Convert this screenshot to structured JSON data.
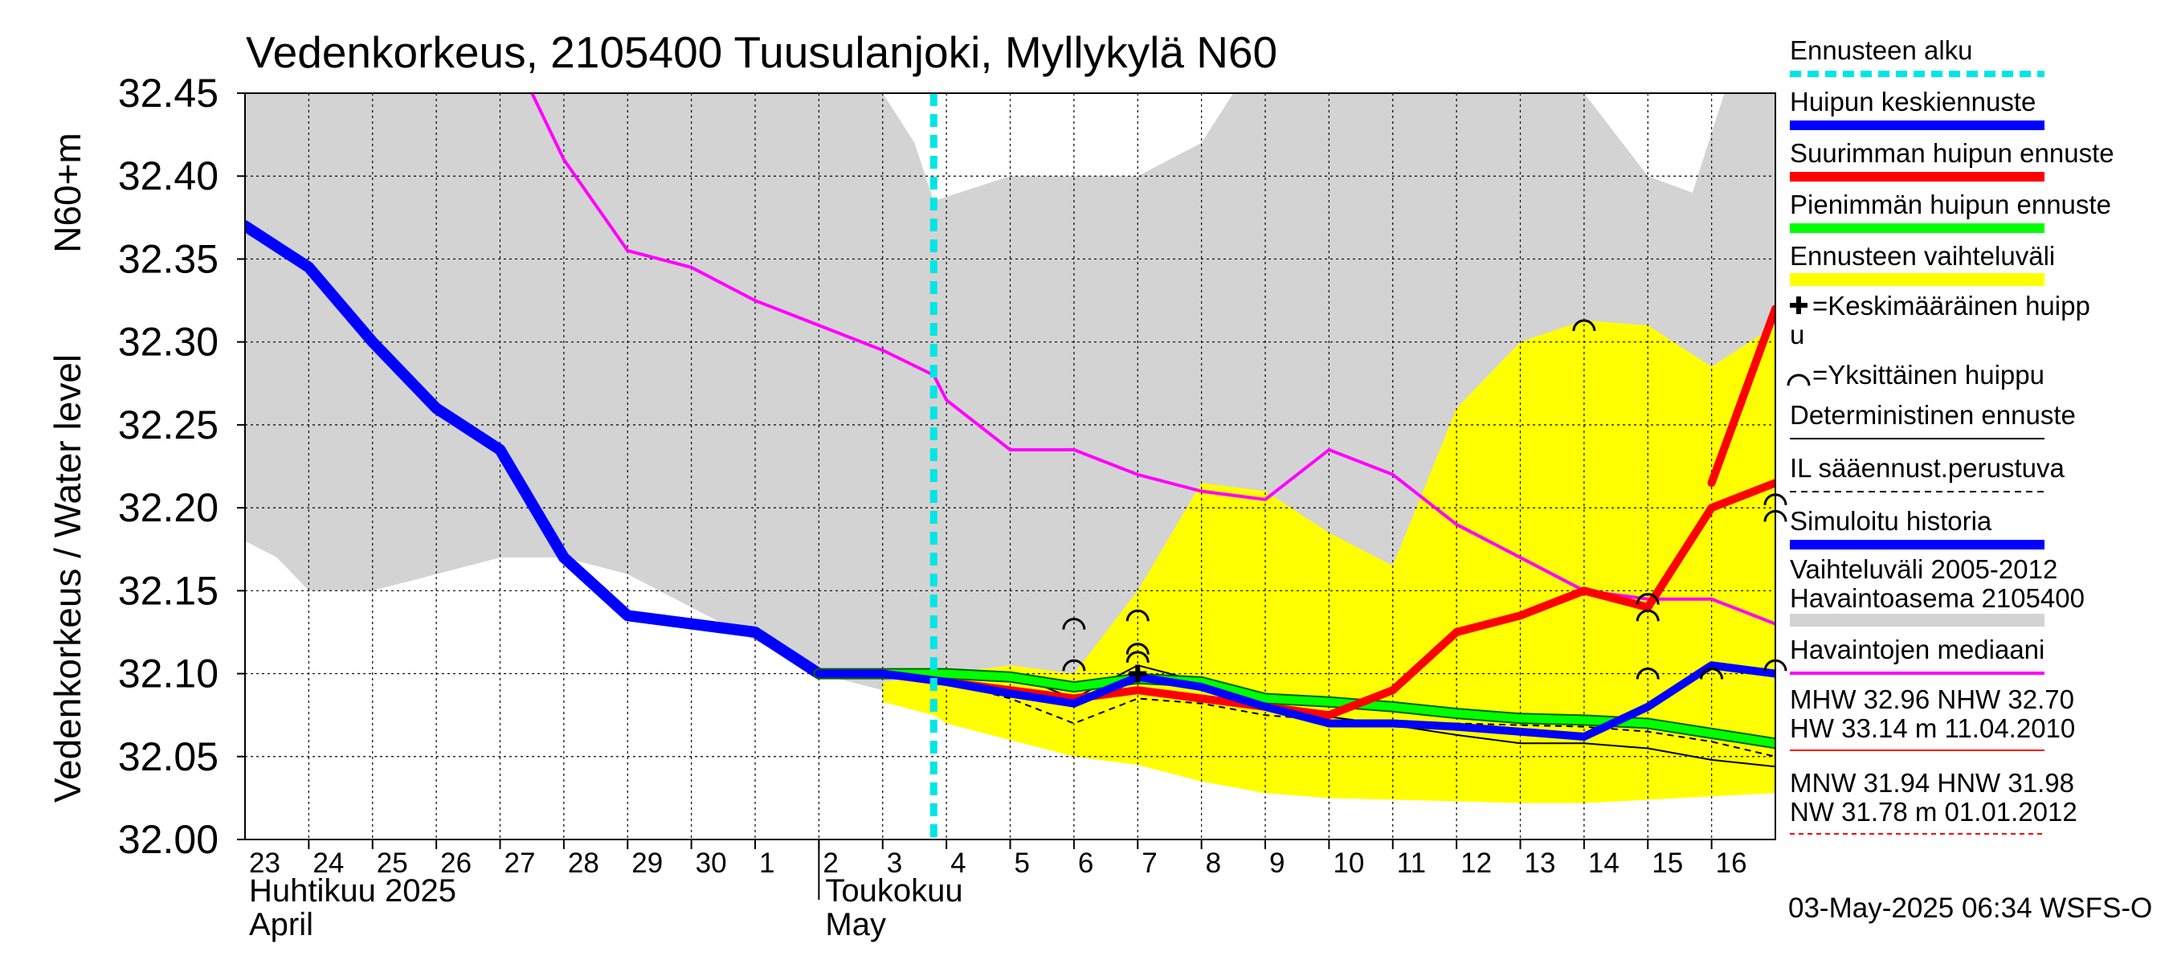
{
  "chart_data": {
    "type": "line",
    "title": "Vedenkorkeus, 2105400 Tuusulanjoki, Myllykylä N60",
    "ylabel_line1": "N60+m",
    "ylabel_line2": "Vedenkorkeus / Water level",
    "ylim": [
      32.0,
      32.45
    ],
    "yticks": [
      32.0,
      32.05,
      32.1,
      32.15,
      32.2,
      32.25,
      32.3,
      32.35,
      32.4,
      32.45
    ],
    "ytick_labels": [
      "32.00",
      "32.05",
      "32.10",
      "32.15",
      "32.20",
      "32.25",
      "32.30",
      "32.35",
      "32.40",
      "32.45"
    ],
    "xlim": [
      0,
      24
    ],
    "day_labels": [
      "23",
      "24",
      "25",
      "26",
      "27",
      "28",
      "29",
      "30",
      "1",
      "2",
      "3",
      "4",
      "5",
      "6",
      "7",
      "8",
      "9",
      "10",
      "11",
      "12",
      "13",
      "14",
      "15",
      "16"
    ],
    "month_labels": [
      {
        "fi": "Huhtikuu  2025",
        "en": "April",
        "x": 0
      },
      {
        "fi": "Toukokuu",
        "en": "May",
        "x": 9
      }
    ],
    "forecast_start_x": 10.8,
    "range_band": {
      "name": "Vaihteluväli 2005-2012  Havaintoasema 2105400",
      "color": "#d3d3d3",
      "x": [
        0,
        0.5,
        1,
        2,
        3,
        4,
        5,
        6,
        7,
        8,
        9,
        10,
        10.5,
        10.8,
        11.2,
        12,
        13,
        14,
        15,
        15.5,
        16,
        17,
        18,
        19,
        20,
        21,
        22,
        22.7,
        23.2,
        23.5,
        24
      ],
      "upper": [
        32.45,
        32.45,
        32.45,
        32.45,
        32.45,
        32.45,
        32.45,
        32.45,
        32.45,
        32.45,
        32.45,
        32.45,
        32.42,
        32.385,
        32.39,
        32.4,
        32.4,
        32.4,
        32.42,
        32.45,
        32.45,
        32.45,
        32.45,
        32.45,
        32.45,
        32.45,
        32.4,
        32.39,
        32.45,
        32.45,
        32.45
      ],
      "lower": [
        32.18,
        32.17,
        32.15,
        32.15,
        32.16,
        32.17,
        32.17,
        32.16,
        32.14,
        32.12,
        32.1,
        32.09,
        32.08,
        32.075,
        32.08,
        32.08,
        32.1,
        32.08,
        32.1,
        32.09,
        32.08,
        32.07,
        32.06,
        32.06,
        32.06,
        32.06,
        32.06,
        32.05,
        32.1,
        32.15,
        32.29
      ]
    },
    "forecast_band": {
      "name": "Ennusteen vaihteluväli",
      "color": "#ffff00",
      "x": [
        10,
        10.8,
        11,
        12,
        13,
        14,
        15,
        16,
        17,
        18,
        19,
        20,
        21,
        22,
        23,
        24
      ],
      "upper": [
        32.095,
        32.098,
        32.1,
        32.105,
        32.1,
        32.15,
        32.215,
        32.21,
        32.185,
        32.165,
        32.26,
        32.3,
        32.313,
        32.31,
        32.285,
        32.31
      ],
      "lower": [
        32.083,
        32.075,
        32.07,
        32.06,
        32.05,
        32.045,
        32.035,
        32.028,
        32.025,
        32.024,
        32.023,
        32.022,
        32.022,
        32.024,
        32.026,
        32.028
      ]
    },
    "series": [
      {
        "name": "Havaintojen mediaani",
        "color": "#ff00ff",
        "width": 4,
        "x": [
          4.5,
          5,
          6,
          7,
          8,
          9,
          10,
          10.8,
          11,
          12,
          13,
          14,
          15,
          16,
          17,
          18,
          19,
          20,
          21,
          22,
          23,
          24
        ],
        "y": [
          32.45,
          32.41,
          32.355,
          32.345,
          32.325,
          32.31,
          32.295,
          32.28,
          32.265,
          32.235,
          32.235,
          32.22,
          32.21,
          32.205,
          32.235,
          32.22,
          32.19,
          32.17,
          32.15,
          32.145,
          32.145,
          32.13
        ]
      },
      {
        "name": "Simuloitu historia",
        "color": "#0000ff",
        "width": 14,
        "x": [
          0,
          1,
          2,
          3,
          4,
          5,
          6,
          7,
          8,
          9
        ],
        "y": [
          32.37,
          32.345,
          32.3,
          32.26,
          32.235,
          32.17,
          32.135,
          32.13,
          32.125,
          32.1
        ]
      },
      {
        "name": "Simuloitu historia (ohut)",
        "color": "#0000ff",
        "width": 4,
        "x": [
          9,
          10
        ],
        "y": [
          32.1,
          32.1
        ]
      },
      {
        "name": "Deterministinen ennuste",
        "color": "#000000",
        "width": 2,
        "x": [
          9,
          10,
          11,
          12,
          13,
          14,
          15,
          16,
          17,
          18,
          19,
          20,
          21,
          22,
          23,
          24
        ],
        "y": [
          32.1,
          32.1,
          32.1,
          32.1,
          32.085,
          32.105,
          32.095,
          32.08,
          32.074,
          32.069,
          32.063,
          32.058,
          32.058,
          32.055,
          32.048,
          32.044
        ]
      },
      {
        "name": "IL sääennust.perustuva",
        "color": "#000000",
        "width": 2,
        "dash": "8,6",
        "x": [
          10,
          11,
          12,
          13,
          14,
          15,
          16,
          17,
          18,
          19,
          20,
          21,
          22,
          23,
          24
        ],
        "y": [
          32.1,
          32.095,
          32.085,
          32.07,
          32.085,
          32.082,
          32.075,
          32.072,
          32.071,
          32.07,
          32.069,
          32.068,
          32.065,
          32.059,
          32.05
        ]
      },
      {
        "name": "Pienimmän huipun ennuste",
        "color": "#00ff00",
        "width": 10,
        "x": [
          9,
          10,
          11,
          12,
          13,
          14,
          15,
          16,
          17,
          18,
          19,
          20,
          21,
          22,
          23,
          24
        ],
        "y": [
          32.1,
          32.1,
          32.1,
          32.098,
          32.092,
          32.097,
          32.095,
          32.085,
          32.083,
          32.08,
          32.076,
          32.073,
          32.072,
          32.07,
          32.064,
          32.058
        ]
      },
      {
        "name": "Suurimman huipun ennuste",
        "color": "#ff0000",
        "width": 10,
        "x": [
          9,
          10,
          11,
          12,
          13,
          14,
          15,
          16,
          17,
          18,
          19,
          20,
          21,
          22,
          23,
          24
        ],
        "y": [
          32.1,
          32.1,
          32.095,
          32.09,
          32.085,
          32.09,
          32.085,
          32.08,
          32.075,
          32.09,
          32.125,
          32.135,
          32.15,
          32.14,
          32.2,
          32.215
        ]
      },
      {
        "name": "Suurimman huipun ennuste (loppu)",
        "color": "#ff0000",
        "width": 10,
        "x": [
          23,
          24
        ],
        "y": [
          32.215,
          32.32
        ]
      },
      {
        "name": "Huipun keskiennuste",
        "color": "#0000ff",
        "width": 10,
        "x": [
          9,
          10,
          11,
          12,
          13,
          14,
          15,
          16,
          17,
          18,
          19,
          20,
          21,
          22,
          23,
          24
        ],
        "y": [
          32.1,
          32.1,
          32.095,
          32.088,
          32.082,
          32.098,
          32.092,
          32.08,
          32.07,
          32.07,
          32.068,
          32.065,
          32.062,
          32.08,
          32.105,
          32.1
        ]
      }
    ],
    "single_peaks": [
      {
        "x": 13,
        "y": 32.105
      },
      {
        "x": 13,
        "y": 32.13
      },
      {
        "x": 14,
        "y": 32.11
      },
      {
        "x": 14,
        "y": 32.115
      },
      {
        "x": 14,
        "y": 32.135
      },
      {
        "x": 21,
        "y": 32.31
      },
      {
        "x": 22,
        "y": 32.1
      },
      {
        "x": 22,
        "y": 32.135
      },
      {
        "x": 22,
        "y": 32.145
      },
      {
        "x": 23,
        "y": 32.1
      },
      {
        "x": 24,
        "y": 32.105
      },
      {
        "x": 24,
        "y": 32.195
      },
      {
        "x": 24,
        "y": 32.205
      }
    ],
    "mean_peaks": [
      {
        "x": 14,
        "y": 32.1
      }
    ]
  },
  "legend": {
    "items": [
      {
        "label": "Ennusteen alku",
        "color": "#00e5e5",
        "style": "dashed"
      },
      {
        "label": "Huipun keskiennuste",
        "color": "#0000ff",
        "style": "thick"
      },
      {
        "label": "Suurimman huipun ennuste",
        "color": "#ff0000",
        "style": "thick"
      },
      {
        "label": "Pienimmän huipun ennuste",
        "color": "#00ff00",
        "style": "thick"
      },
      {
        "label": "Ennusteen vaihteluväli",
        "color": "#ffff00",
        "style": "band"
      },
      {
        "label": "=Keskimääräinen huipp",
        "label2": "u",
        "color": "#000000",
        "style": "cross"
      },
      {
        "label": "=Yksittäinen huippu",
        "color": "#000000",
        "style": "arc"
      },
      {
        "label": "Deterministinen ennuste",
        "color": "#000000",
        "style": "thin"
      },
      {
        "label": "IL sääennust.perustuva",
        "color": "#000000",
        "style": "dash"
      },
      {
        "label": "Simuloitu historia",
        "color": "#0000ff",
        "style": "thick"
      },
      {
        "label": "Vaihteluväli 2005-2012",
        "label2": " Havaintoasema 2105400",
        "color": "#d3d3d3",
        "style": "band"
      },
      {
        "label": "Havaintojen mediaani",
        "color": "#ff00ff",
        "style": "medium"
      }
    ],
    "stats": [
      {
        "line1": "MHW  32.96 NHW  32.70",
        "line2": "HW  33.14 m 11.04.2010",
        "color": "#ff0000",
        "style": "solid"
      },
      {
        "line1": "MNW  31.94 HNW  31.98",
        "line2": "NW  31.78 m 01.01.2012",
        "color": "#ff0000",
        "style": "dashed"
      }
    ]
  },
  "footer": {
    "timestamp": "03-May-2025 06:34 WSFS-O"
  }
}
